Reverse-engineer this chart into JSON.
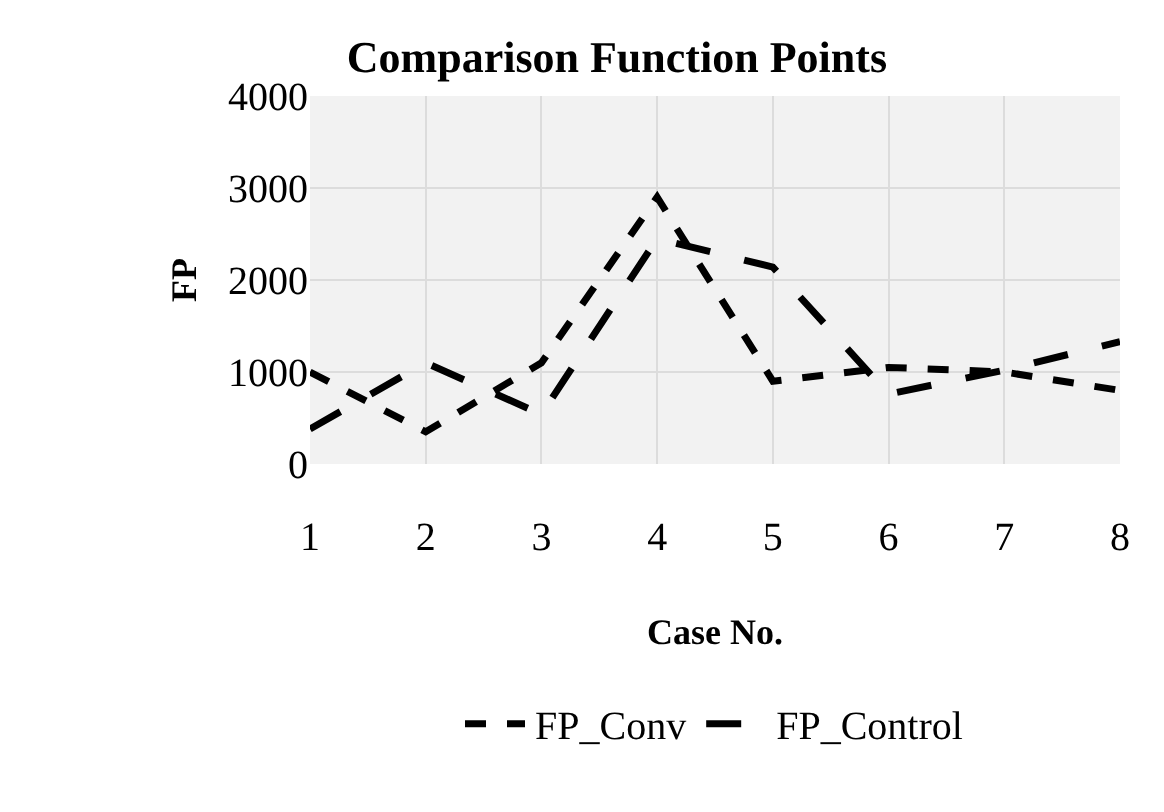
{
  "chart_data": {
    "type": "line",
    "title": "Comparison Function Points",
    "xlabel": "Case No.",
    "ylabel": "FP",
    "categories": [
      "1",
      "2",
      "3",
      "4",
      "5",
      "6",
      "7",
      "8"
    ],
    "series": [
      {
        "name": "FP_Conv",
        "color": "#000000",
        "line_style": "dotted",
        "values": [
          1000,
          350,
          1100,
          2900,
          900,
          1050,
          1000,
          800
        ]
      },
      {
        "name": "FP_Control",
        "color": "#000000",
        "line_style": "dashed",
        "values": [
          380,
          1100,
          540,
          2450,
          2140,
          760,
          1020,
          1330
        ]
      }
    ],
    "ylim": [
      0,
      4000
    ],
    "yticks": [
      0,
      1000,
      2000,
      3000,
      4000
    ],
    "grid": true,
    "legend": "bottom",
    "marker": "none"
  }
}
